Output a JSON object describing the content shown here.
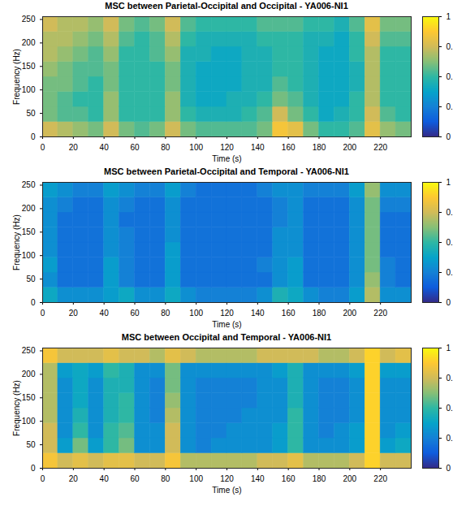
{
  "chart_data": [
    {
      "type": "heatmap",
      "title": "MSC between Parietal-Occipital and Occipital - YA006-NI1",
      "xlabel": "Time (s)",
      "ylabel": "Frequency (Hz)",
      "xlim": [
        0,
        240
      ],
      "ylim": [
        0,
        256
      ],
      "xticks": [
        0,
        20,
        40,
        60,
        80,
        100,
        120,
        140,
        160,
        180,
        200,
        220
      ],
      "yticks": [
        0,
        50,
        100,
        150,
        200,
        250
      ],
      "x_edges": [
        0,
        10,
        20,
        30,
        40,
        50,
        60,
        70,
        80,
        90,
        100,
        110,
        120,
        130,
        140,
        150,
        160,
        170,
        180,
        190,
        200,
        210,
        220,
        230,
        240
      ],
      "y_edges": [
        0,
        32,
        64,
        96,
        128,
        160,
        192,
        224,
        256
      ],
      "values": [
        [
          0.75,
          0.7,
          0.65,
          0.6,
          0.75,
          0.6,
          0.55,
          0.6,
          0.75,
          0.6,
          0.55,
          0.55,
          0.55,
          0.55,
          0.6,
          0.85,
          0.8,
          0.6,
          0.5,
          0.5,
          0.55,
          0.8,
          0.65,
          0.6
        ],
        [
          0.6,
          0.55,
          0.55,
          0.5,
          0.65,
          0.5,
          0.5,
          0.5,
          0.65,
          0.5,
          0.45,
          0.45,
          0.45,
          0.5,
          0.55,
          0.75,
          0.6,
          0.5,
          0.4,
          0.45,
          0.5,
          0.75,
          0.55,
          0.5
        ],
        [
          0.6,
          0.55,
          0.5,
          0.5,
          0.65,
          0.5,
          0.5,
          0.5,
          0.65,
          0.45,
          0.4,
          0.4,
          0.45,
          0.45,
          0.5,
          0.6,
          0.55,
          0.45,
          0.4,
          0.4,
          0.5,
          0.7,
          0.5,
          0.5
        ],
        [
          0.6,
          0.6,
          0.55,
          0.5,
          0.6,
          0.5,
          0.5,
          0.5,
          0.6,
          0.45,
          0.4,
          0.4,
          0.4,
          0.45,
          0.45,
          0.55,
          0.5,
          0.45,
          0.4,
          0.4,
          0.45,
          0.7,
          0.5,
          0.5
        ],
        [
          0.65,
          0.6,
          0.55,
          0.55,
          0.6,
          0.5,
          0.5,
          0.5,
          0.6,
          0.45,
          0.4,
          0.4,
          0.4,
          0.45,
          0.45,
          0.5,
          0.5,
          0.45,
          0.4,
          0.4,
          0.45,
          0.7,
          0.5,
          0.5
        ],
        [
          0.7,
          0.65,
          0.6,
          0.55,
          0.65,
          0.5,
          0.5,
          0.55,
          0.65,
          0.45,
          0.45,
          0.4,
          0.4,
          0.45,
          0.45,
          0.5,
          0.5,
          0.45,
          0.4,
          0.4,
          0.5,
          0.7,
          0.5,
          0.5
        ],
        [
          0.7,
          0.7,
          0.65,
          0.6,
          0.7,
          0.55,
          0.5,
          0.55,
          0.7,
          0.5,
          0.45,
          0.45,
          0.45,
          0.45,
          0.5,
          0.5,
          0.5,
          0.45,
          0.45,
          0.4,
          0.5,
          0.75,
          0.55,
          0.55
        ],
        [
          0.75,
          0.7,
          0.7,
          0.65,
          0.75,
          0.6,
          0.55,
          0.6,
          0.75,
          0.55,
          0.5,
          0.5,
          0.5,
          0.5,
          0.55,
          0.55,
          0.55,
          0.5,
          0.5,
          0.45,
          0.55,
          0.8,
          0.6,
          0.6
        ]
      ],
      "colorbar": {
        "range": [
          0,
          1
        ],
        "ticks": [
          0,
          {
            "value": 0.25,
            "label": "0."
          },
          {
            "value": 0.5,
            "label": "0."
          },
          {
            "value": 0.75,
            "label": "0."
          },
          1
        ]
      }
    },
    {
      "type": "heatmap",
      "title": "MSC between Parietal-Occipital and Temporal - YA006-NI1",
      "xlabel": "Time (s)",
      "ylabel": "Frequency (Hz)",
      "xlim": [
        0,
        240
      ],
      "ylim": [
        0,
        256
      ],
      "xticks": [
        0,
        20,
        40,
        60,
        80,
        100,
        120,
        140,
        160,
        180,
        200,
        220
      ],
      "yticks": [
        0,
        50,
        100,
        150,
        200,
        250
      ],
      "x_edges": [
        0,
        10,
        20,
        30,
        40,
        50,
        60,
        70,
        80,
        90,
        100,
        110,
        120,
        130,
        140,
        150,
        160,
        170,
        180,
        190,
        200,
        210,
        220,
        230,
        240
      ],
      "y_edges": [
        0,
        32,
        64,
        96,
        128,
        160,
        192,
        224,
        256
      ],
      "values": [
        [
          0.4,
          0.3,
          0.3,
          0.3,
          0.35,
          0.4,
          0.3,
          0.3,
          0.4,
          0.3,
          0.25,
          0.25,
          0.25,
          0.25,
          0.3,
          0.45,
          0.4,
          0.3,
          0.25,
          0.25,
          0.35,
          0.7,
          0.3,
          0.3
        ],
        [
          0.3,
          0.2,
          0.2,
          0.2,
          0.35,
          0.25,
          0.2,
          0.2,
          0.35,
          0.2,
          0.2,
          0.2,
          0.2,
          0.2,
          0.2,
          0.3,
          0.35,
          0.2,
          0.2,
          0.2,
          0.3,
          0.65,
          0.25,
          0.2
        ],
        [
          0.35,
          0.2,
          0.2,
          0.2,
          0.35,
          0.25,
          0.2,
          0.2,
          0.35,
          0.2,
          0.2,
          0.2,
          0.2,
          0.2,
          0.25,
          0.3,
          0.35,
          0.2,
          0.2,
          0.2,
          0.3,
          0.6,
          0.25,
          0.2
        ],
        [
          0.3,
          0.2,
          0.2,
          0.2,
          0.3,
          0.25,
          0.2,
          0.2,
          0.35,
          0.2,
          0.2,
          0.2,
          0.2,
          0.2,
          0.2,
          0.3,
          0.3,
          0.2,
          0.2,
          0.2,
          0.3,
          0.6,
          0.2,
          0.2
        ],
        [
          0.3,
          0.2,
          0.2,
          0.2,
          0.3,
          0.25,
          0.2,
          0.2,
          0.3,
          0.2,
          0.2,
          0.2,
          0.2,
          0.2,
          0.2,
          0.3,
          0.3,
          0.2,
          0.2,
          0.2,
          0.3,
          0.6,
          0.2,
          0.2
        ],
        [
          0.3,
          0.2,
          0.2,
          0.2,
          0.3,
          0.2,
          0.2,
          0.2,
          0.3,
          0.2,
          0.2,
          0.2,
          0.2,
          0.2,
          0.2,
          0.25,
          0.3,
          0.2,
          0.2,
          0.2,
          0.3,
          0.6,
          0.2,
          0.2
        ],
        [
          0.3,
          0.25,
          0.2,
          0.2,
          0.3,
          0.25,
          0.2,
          0.2,
          0.3,
          0.2,
          0.2,
          0.2,
          0.2,
          0.2,
          0.2,
          0.25,
          0.3,
          0.2,
          0.2,
          0.2,
          0.3,
          0.6,
          0.25,
          0.25
        ],
        [
          0.35,
          0.3,
          0.25,
          0.25,
          0.35,
          0.3,
          0.25,
          0.25,
          0.35,
          0.25,
          0.2,
          0.2,
          0.2,
          0.2,
          0.25,
          0.3,
          0.3,
          0.25,
          0.25,
          0.25,
          0.35,
          0.65,
          0.3,
          0.3
        ]
      ],
      "colorbar": {
        "range": [
          0,
          1
        ],
        "ticks": [
          0,
          {
            "value": 0.25,
            "label": "0."
          },
          {
            "value": 0.5,
            "label": "0."
          },
          {
            "value": 0.75,
            "label": "0."
          },
          1
        ]
      }
    },
    {
      "type": "heatmap",
      "title": "MSC between Occipital and Temporal - YA006-NI1",
      "xlabel": "Time (s)",
      "ylabel": "Frequency (Hz)",
      "xlim": [
        0,
        240
      ],
      "ylim": [
        0,
        256
      ],
      "xticks": [
        0,
        20,
        40,
        60,
        80,
        100,
        120,
        140,
        160,
        180,
        200,
        220
      ],
      "yticks": [
        0,
        50,
        100,
        150,
        200,
        250
      ],
      "x_edges": [
        0,
        10,
        20,
        30,
        40,
        50,
        60,
        70,
        80,
        90,
        100,
        110,
        120,
        130,
        140,
        150,
        160,
        170,
        180,
        190,
        200,
        210,
        220,
        230,
        240
      ],
      "y_edges": [
        0,
        32,
        64,
        96,
        128,
        160,
        192,
        224,
        256
      ],
      "values": [
        [
          0.85,
          0.75,
          0.8,
          0.75,
          0.8,
          0.8,
          0.75,
          0.75,
          0.85,
          0.7,
          0.7,
          0.7,
          0.7,
          0.7,
          0.75,
          0.75,
          0.8,
          0.7,
          0.7,
          0.7,
          0.75,
          0.9,
          0.75,
          0.75
        ],
        [
          0.75,
          0.35,
          0.6,
          0.35,
          0.5,
          0.6,
          0.3,
          0.3,
          0.75,
          0.3,
          0.25,
          0.3,
          0.3,
          0.3,
          0.3,
          0.35,
          0.5,
          0.3,
          0.3,
          0.3,
          0.35,
          0.9,
          0.35,
          0.4
        ],
        [
          0.75,
          0.3,
          0.5,
          0.3,
          0.5,
          0.55,
          0.3,
          0.3,
          0.75,
          0.3,
          0.25,
          0.25,
          0.3,
          0.3,
          0.3,
          0.35,
          0.5,
          0.3,
          0.25,
          0.3,
          0.35,
          0.9,
          0.3,
          0.35
        ],
        [
          0.7,
          0.3,
          0.45,
          0.3,
          0.45,
          0.5,
          0.3,
          0.25,
          0.7,
          0.3,
          0.25,
          0.25,
          0.25,
          0.3,
          0.3,
          0.3,
          0.5,
          0.3,
          0.25,
          0.25,
          0.3,
          0.9,
          0.3,
          0.3
        ],
        [
          0.7,
          0.3,
          0.4,
          0.3,
          0.45,
          0.5,
          0.3,
          0.25,
          0.65,
          0.3,
          0.25,
          0.25,
          0.25,
          0.25,
          0.3,
          0.3,
          0.45,
          0.3,
          0.25,
          0.25,
          0.3,
          0.9,
          0.3,
          0.3
        ],
        [
          0.7,
          0.3,
          0.4,
          0.3,
          0.45,
          0.45,
          0.3,
          0.25,
          0.6,
          0.3,
          0.25,
          0.25,
          0.25,
          0.25,
          0.3,
          0.3,
          0.45,
          0.3,
          0.25,
          0.25,
          0.3,
          0.9,
          0.3,
          0.3
        ],
        [
          0.7,
          0.35,
          0.4,
          0.35,
          0.5,
          0.45,
          0.3,
          0.3,
          0.6,
          0.3,
          0.3,
          0.3,
          0.3,
          0.3,
          0.3,
          0.35,
          0.45,
          0.3,
          0.3,
          0.3,
          0.35,
          0.9,
          0.35,
          0.35
        ],
        [
          0.85,
          0.75,
          0.75,
          0.75,
          0.8,
          0.75,
          0.75,
          0.7,
          0.8,
          0.75,
          0.7,
          0.7,
          0.7,
          0.7,
          0.75,
          0.75,
          0.75,
          0.75,
          0.7,
          0.7,
          0.75,
          0.9,
          0.75,
          0.8
        ]
      ],
      "colorbar": {
        "range": [
          0,
          1
        ],
        "ticks": [
          0,
          {
            "value": 0.25,
            "label": "0."
          },
          {
            "value": 0.5,
            "label": "0."
          },
          {
            "value": 0.75,
            "label": "0."
          },
          1
        ]
      }
    }
  ]
}
